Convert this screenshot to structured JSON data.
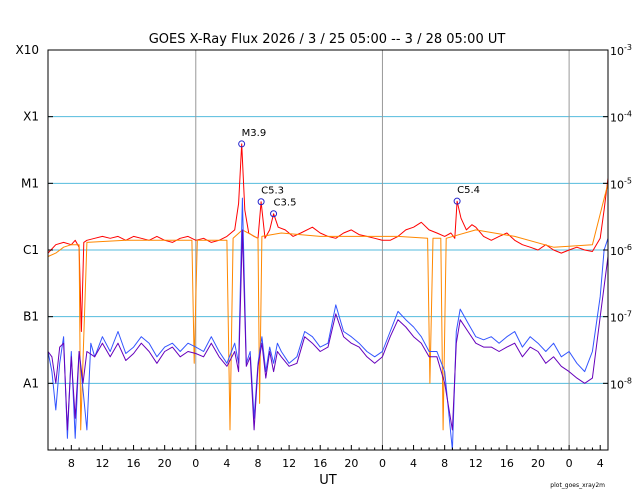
{
  "chart_data": {
    "type": "line",
    "title": "GOES X-Ray Flux   2026  /  3  /  25    05:00 --  3  /  28   05:00   UT",
    "xlabel": "UT",
    "ylabel": "",
    "y_scale": "log",
    "ylim": [
      1e-09,
      0.001
    ],
    "xlim": [
      0,
      72
    ],
    "x_unit": "hours since 2026-03-25 05:00 UT",
    "x_tick_labels": [
      "8",
      "12",
      "16",
      "20",
      "0",
      "4",
      "8",
      "12",
      "16",
      "20",
      "0",
      "4",
      "8",
      "12",
      "16",
      "20",
      "0",
      "4"
    ],
    "x_tick_hours": [
      3,
      7,
      11,
      15,
      19,
      23,
      27,
      31,
      35,
      39,
      43,
      47,
      51,
      55,
      59,
      63,
      67,
      71
    ],
    "day_boundaries_hours": [
      19,
      43,
      67
    ],
    "left_axis_labels": [
      {
        "label": "X10",
        "value": 0.001
      },
      {
        "label": "X1",
        "value": 0.0001
      },
      {
        "label": "M1",
        "value": 1e-05
      },
      {
        "label": "C1",
        "value": 1e-06
      },
      {
        "label": "B1",
        "value": 1e-07
      },
      {
        "label": "A1",
        "value": 1e-08
      }
    ],
    "right_axis_labels": [
      {
        "mant": "10",
        "exp": "-3",
        "value": 0.001
      },
      {
        "mant": "10",
        "exp": "-4",
        "value": 0.0001
      },
      {
        "mant": "10",
        "exp": "-5",
        "value": 1e-05
      },
      {
        "mant": "10",
        "exp": "-6",
        "value": 1e-06
      },
      {
        "mant": "10",
        "exp": "-7",
        "value": 1e-07
      },
      {
        "mant": "10",
        "exp": "-8",
        "value": 1e-08
      }
    ],
    "flare_labels": [
      {
        "label": "M3.9",
        "x": 24.9,
        "y": 3.9e-05
      },
      {
        "label": "C5.3",
        "x": 27.4,
        "y": 5.3e-06
      },
      {
        "label": "C3.5",
        "x": 29.0,
        "y": 3.5e-06
      },
      {
        "label": "C5.4",
        "x": 52.6,
        "y": 5.4e-06
      }
    ],
    "series": [
      {
        "color": "#ff0000",
        "x": [
          0,
          1,
          2,
          3,
          3.5,
          4,
          4.3,
          4.6,
          5,
          6,
          7,
          8,
          9,
          10,
          11,
          12,
          13,
          14,
          15,
          16,
          17,
          18,
          19,
          20,
          21,
          22,
          23,
          24,
          24.5,
          24.9,
          25.3,
          25.8,
          26.5,
          27,
          27.4,
          27.9,
          28.5,
          29.0,
          29.6,
          30.5,
          31.5,
          32.5,
          34,
          35,
          36,
          37,
          38,
          39,
          40,
          41,
          42,
          43,
          44,
          45,
          46,
          47,
          48,
          49,
          50,
          51,
          51.8,
          52.3,
          52.6,
          53.1,
          53.8,
          54.5,
          55,
          56,
          57,
          58,
          59,
          60,
          61,
          62,
          63,
          64,
          65,
          66,
          67,
          68,
          69,
          70,
          71,
          71.5,
          72
        ],
        "y": [
          9e-07,
          1.2e-06,
          1.3e-06,
          1.2e-06,
          1.4e-06,
          1.1e-06,
          6e-08,
          1.3e-06,
          1.4e-06,
          1.5e-06,
          1.6e-06,
          1.5e-06,
          1.6e-06,
          1.4e-06,
          1.6e-06,
          1.5e-06,
          1.4e-06,
          1.6e-06,
          1.4e-06,
          1.3e-06,
          1.5e-06,
          1.6e-06,
          1.4e-06,
          1.5e-06,
          1.3e-06,
          1.4e-06,
          1.6e-06,
          2e-06,
          5e-06,
          3.9e-05,
          4e-06,
          1.8e-06,
          1.6e-06,
          1.5e-06,
          5.3e-06,
          1.5e-06,
          2e-06,
          3.5e-06,
          2.2e-06,
          2e-06,
          1.6e-06,
          1.8e-06,
          2.2e-06,
          1.8e-06,
          1.6e-06,
          1.5e-06,
          1.8e-06,
          2e-06,
          1.7e-06,
          1.6e-06,
          1.5e-06,
          1.4e-06,
          1.4e-06,
          1.6e-06,
          2e-06,
          2.2e-06,
          2.6e-06,
          2e-06,
          1.8e-06,
          1.6e-06,
          1.8e-06,
          1.5e-06,
          5.4e-06,
          3e-06,
          2e-06,
          2.4e-06,
          2.2e-06,
          1.6e-06,
          1.4e-06,
          1.6e-06,
          1.8e-06,
          1.4e-06,
          1.2e-06,
          1.1e-06,
          1e-06,
          1.2e-06,
          1e-06,
          9e-07,
          1e-06,
          1.1e-06,
          1e-06,
          9.5e-07,
          1.5e-06,
          4e-06,
          1.2e-05
        ]
      },
      {
        "color": "#ff8800",
        "x": [
          0,
          1,
          2,
          3,
          4,
          4.2,
          5,
          10,
          15,
          18.5,
          18.8,
          19.2,
          20,
          23,
          23.4,
          23.8,
          25,
          27,
          27.2,
          27.5,
          30,
          35,
          40,
          45,
          48.8,
          49.1,
          49.5,
          50.5,
          50.8,
          51.2,
          55,
          60,
          65,
          70,
          72
        ],
        "y": [
          8e-07,
          9e-07,
          1.1e-06,
          1.2e-06,
          1.2e-06,
          2e-09,
          1.3e-06,
          1.4e-06,
          1.4e-06,
          1.4e-06,
          2e-08,
          1.4e-06,
          1.4e-06,
          1.4e-06,
          2e-09,
          1.5e-06,
          2e-06,
          1.5e-06,
          5e-09,
          1.6e-06,
          1.8e-06,
          1.6e-06,
          1.6e-06,
          1.6e-06,
          1.5e-06,
          1e-08,
          1.5e-06,
          1.5e-06,
          2e-09,
          1.5e-06,
          2e-06,
          1.6e-06,
          1.1e-06,
          1.2e-06,
          1e-05
        ]
      },
      {
        "color": "#3355ff",
        "x": [
          0,
          0.5,
          1,
          1.5,
          2,
          2.5,
          3,
          3.5,
          4,
          4.5,
          5,
          5.5,
          6,
          7,
          8,
          9,
          10,
          11,
          12,
          13,
          14,
          15,
          16,
          17,
          18,
          19,
          20,
          21,
          22,
          23,
          24,
          24.5,
          25,
          25.5,
          26,
          26.5,
          27,
          27.5,
          28,
          28.5,
          29,
          29.5,
          30,
          31,
          32,
          33,
          34,
          35,
          36,
          37,
          38,
          39,
          40,
          41,
          42,
          43,
          44,
          45,
          46,
          47,
          48,
          49,
          50,
          51,
          52,
          52.5,
          53,
          54,
          55,
          56,
          57,
          58,
          59,
          60,
          61,
          62,
          63,
          64,
          65,
          66,
          67,
          68,
          69,
          70,
          71,
          71.5,
          72
        ],
        "y": [
          3e-08,
          1.5e-08,
          4e-09,
          2e-08,
          5e-08,
          1.5e-09,
          3e-08,
          1.5e-09,
          3e-08,
          8e-09,
          2e-09,
          4e-08,
          2.5e-08,
          5e-08,
          3e-08,
          6e-08,
          2.8e-08,
          3.5e-08,
          5e-08,
          4e-08,
          2.5e-08,
          3.5e-08,
          4e-08,
          3e-08,
          4e-08,
          3.5e-08,
          3e-08,
          5e-08,
          3e-08,
          2e-08,
          4e-08,
          2e-08,
          6e-06,
          2e-08,
          3e-08,
          3e-09,
          2e-08,
          5e-08,
          1.5e-08,
          3.5e-08,
          2e-08,
          4e-08,
          3e-08,
          2e-08,
          2.5e-08,
          6e-08,
          5e-08,
          3.5e-08,
          4e-08,
          1.5e-07,
          6e-08,
          5e-08,
          4e-08,
          3e-08,
          2.5e-08,
          3e-08,
          6e-08,
          1.2e-07,
          9e-08,
          7e-08,
          5e-08,
          3e-08,
          3e-08,
          1.5e-08,
          1e-09,
          6e-08,
          1.3e-07,
          8e-08,
          5e-08,
          4.5e-08,
          5e-08,
          4e-08,
          5e-08,
          6e-08,
          3.5e-08,
          5e-08,
          4e-08,
          3e-08,
          4e-08,
          2.5e-08,
          3e-08,
          2e-08,
          1.5e-08,
          3e-08,
          2e-07,
          1e-06,
          1.5e-06
        ]
      },
      {
        "color": "#6600bb",
        "x": [
          0,
          0.5,
          1,
          1.5,
          2,
          2.5,
          3,
          3.5,
          4,
          4.5,
          5,
          6,
          7,
          8,
          9,
          10,
          11,
          12,
          13,
          14,
          15,
          16,
          17,
          18,
          19,
          20,
          21,
          22,
          23,
          24,
          24.5,
          25,
          25.5,
          26,
          26.5,
          27,
          27.5,
          28,
          28.5,
          29,
          29.5,
          30,
          31,
          32,
          33,
          34,
          35,
          36,
          37,
          38,
          39,
          40,
          41,
          42,
          43,
          44,
          45,
          46,
          47,
          48,
          49,
          50,
          51,
          52,
          52.5,
          53,
          54,
          55,
          56,
          57,
          58,
          59,
          60,
          61,
          62,
          63,
          64,
          65,
          66,
          67,
          68,
          69,
          70,
          71,
          72
        ],
        "y": [
          3e-08,
          2.5e-08,
          1e-08,
          3.5e-08,
          4e-08,
          2e-09,
          2.5e-08,
          3e-09,
          3e-08,
          1e-08,
          3e-08,
          2.5e-08,
          4e-08,
          2.5e-08,
          4e-08,
          2.2e-08,
          2.8e-08,
          4e-08,
          3e-08,
          2e-08,
          3e-08,
          3.5e-08,
          2.5e-08,
          3e-08,
          2.8e-08,
          2.5e-08,
          4e-08,
          2.5e-08,
          1.8e-08,
          3e-08,
          1.5e-08,
          2e-06,
          1.8e-08,
          2.5e-08,
          2e-09,
          1.8e-08,
          4e-08,
          1.2e-08,
          3e-08,
          1.5e-08,
          3e-08,
          2.5e-08,
          1.8e-08,
          2e-08,
          5e-08,
          4e-08,
          3e-08,
          3.5e-08,
          1.1e-07,
          5e-08,
          4e-08,
          3.5e-08,
          2.5e-08,
          2e-08,
          2.5e-08,
          5e-08,
          9e-08,
          7e-08,
          5e-08,
          4e-08,
          2.5e-08,
          2.5e-08,
          1e-08,
          2e-09,
          4e-08,
          9e-08,
          6e-08,
          4e-08,
          3.5e-08,
          3.5e-08,
          3e-08,
          3.5e-08,
          4e-08,
          2.5e-08,
          3.5e-08,
          3e-08,
          2e-08,
          2.5e-08,
          1.8e-08,
          1.5e-08,
          1.2e-08,
          1e-08,
          1.2e-08,
          1e-07,
          8e-07
        ]
      }
    ]
  },
  "footer": {
    "credit": "plot_goes_xray2m"
  },
  "colors": {
    "grid": "#55bbdd",
    "day_line": "#999999",
    "marker": "#2222cc"
  }
}
